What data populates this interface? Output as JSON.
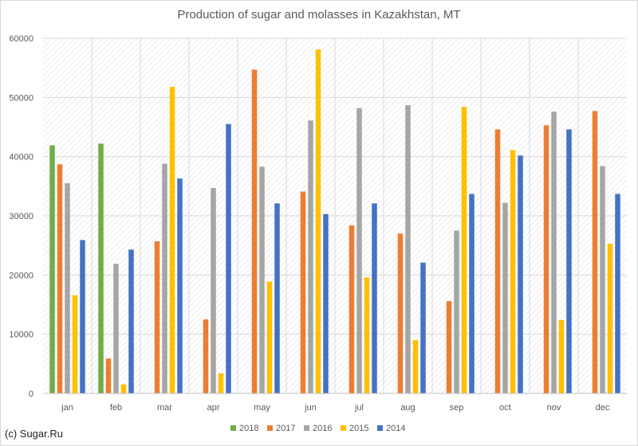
{
  "chart_data": {
    "type": "bar",
    "title": "Production of sugar and molasses in Kazakhstan, MT",
    "xlabel": "",
    "ylabel": "",
    "ylim": [
      0,
      60000
    ],
    "yticks": [
      0,
      10000,
      20000,
      30000,
      40000,
      50000,
      60000
    ],
    "categories": [
      "jan",
      "feb",
      "mar",
      "apr",
      "may",
      "jun",
      "jul",
      "aug",
      "sep",
      "oct",
      "nov",
      "dec"
    ],
    "grid": true,
    "legend_position": "bottom",
    "series": [
      {
        "name": "2018",
        "color": "#70ad47",
        "values": [
          41900,
          42200,
          null,
          null,
          null,
          null,
          null,
          null,
          null,
          null,
          null,
          null
        ]
      },
      {
        "name": "2017",
        "color": "#ed7d31",
        "values": [
          38700,
          5900,
          25700,
          12500,
          54700,
          34100,
          28400,
          27000,
          15600,
          44600,
          45300,
          47700
        ]
      },
      {
        "name": "2016",
        "color": "#a5a5a5",
        "values": [
          35500,
          21900,
          38800,
          34700,
          38300,
          46100,
          48200,
          48700,
          27500,
          32200,
          47600,
          38400
        ]
      },
      {
        "name": "2015",
        "color": "#ffc000",
        "values": [
          16600,
          1500,
          51800,
          3400,
          18900,
          58100,
          19600,
          9000,
          48400,
          41100,
          12400,
          25300
        ]
      },
      {
        "name": "2014",
        "color": "#4472c4",
        "values": [
          25900,
          24300,
          36300,
          45500,
          32100,
          30300,
          32100,
          22100,
          33700,
          40200,
          44600,
          33700
        ]
      }
    ]
  },
  "footer": "(c) Sugar.Ru"
}
